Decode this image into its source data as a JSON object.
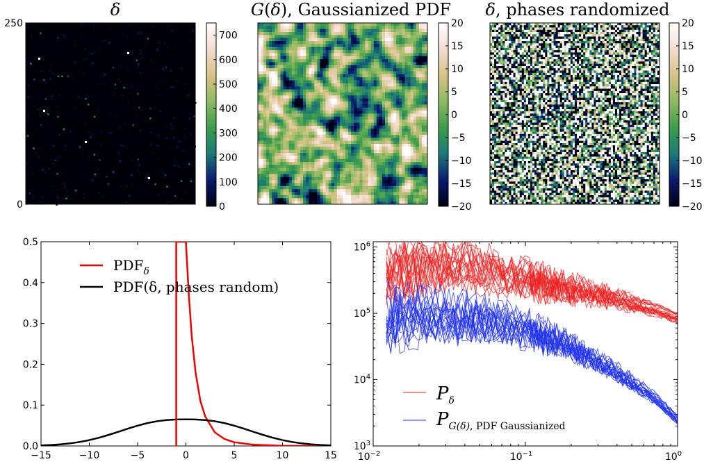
{
  "chart_data": [
    {
      "type": "heatmap",
      "title": "δ",
      "ytick_labels": [
        "250",
        "0"
      ],
      "colorbar": {
        "ticks": [
          0,
          100,
          200,
          300,
          400,
          500,
          600,
          700
        ],
        "range": [
          0,
          750
        ],
        "colors": [
          "#000010",
          "#0a1a70",
          "#1a7a78",
          "#3c9c4c",
          "#8eb962",
          "#d7c387",
          "#f2dcd2",
          "#ffffff"
        ]
      },
      "background": "#000000"
    },
    {
      "type": "heatmap",
      "title": "G(δ), Gaussianized PDF",
      "colorbar": {
        "ticks": [
          20,
          15,
          10,
          5,
          0,
          -5,
          -10,
          -15,
          -20
        ],
        "range": [
          -20,
          20
        ],
        "colors": [
          "#000010",
          "#0a1a70",
          "#1a7a78",
          "#3c9c4c",
          "#8eb962",
          "#d7c387",
          "#f2dcd2",
          "#ffffff"
        ]
      }
    },
    {
      "type": "heatmap",
      "title": "δ, phases randomized",
      "colorbar": {
        "ticks": [
          20,
          15,
          10,
          5,
          0,
          -5,
          -10,
          -15,
          -20
        ],
        "range": [
          -20,
          20
        ],
        "colors": [
          "#000010",
          "#0a1a70",
          "#1a7a78",
          "#3c9c4c",
          "#8eb962",
          "#d7c387",
          "#f2dcd2",
          "#ffffff"
        ]
      }
    },
    {
      "type": "line",
      "xlim": [
        -15,
        15
      ],
      "ylim": [
        0,
        0.5
      ],
      "xticks": [
        -15,
        -10,
        -5,
        0,
        5,
        10,
        15
      ],
      "yticks": [
        0.0,
        0.1,
        0.2,
        0.3,
        0.4,
        0.5
      ],
      "ytick_labels": [
        "0.0",
        "0.1",
        "0.2",
        "0.3",
        "0.4",
        "0.5"
      ],
      "legend_position": "top-right",
      "series": [
        {
          "name": "PDF",
          "name_subscript": "δ",
          "color": "#ee0000",
          "x": [
            -1.0,
            -0.98,
            -0.95,
            -0.9,
            -0.8,
            -0.6,
            -0.3,
            0,
            0.3,
            0.6,
            1.0,
            1.5,
            2,
            3,
            4,
            5,
            7,
            10,
            15
          ],
          "y": [
            0.5,
            0.5,
            0.5,
            0.5,
            0.5,
            0.5,
            0.5,
            0.5,
            0.37,
            0.27,
            0.18,
            0.11,
            0.072,
            0.033,
            0.017,
            0.009,
            0.003,
            0.0005,
            0.0
          ]
        },
        {
          "name": "PDF(δ, phases random)",
          "color": "#000000",
          "x": [
            -15,
            -14,
            -13,
            -12,
            -11,
            -10,
            -9,
            -8,
            -7,
            -6,
            -5,
            -4,
            -3,
            -2,
            -1,
            0,
            1,
            2,
            3,
            4,
            5,
            6,
            7,
            8,
            9,
            10,
            11,
            12,
            13,
            14,
            15
          ],
          "y": [
            0.0013,
            0.0023,
            0.0039,
            0.0063,
            0.0097,
            0.0143,
            0.0201,
            0.027,
            0.0346,
            0.0424,
            0.0497,
            0.0559,
            0.0605,
            0.0634,
            0.0648,
            0.065,
            0.0648,
            0.0634,
            0.0605,
            0.0559,
            0.0497,
            0.0424,
            0.0346,
            0.027,
            0.0201,
            0.0143,
            0.0097,
            0.0063,
            0.0039,
            0.0023,
            0.0013
          ]
        },
        {
          "name": "",
          "color": "#ee0000",
          "x": [
            -1.0,
            -1.0
          ],
          "y": [
            0.0,
            0.5
          ]
        }
      ]
    },
    {
      "type": "line",
      "xscale": "log",
      "yscale": "log",
      "xlim": [
        0.01,
        1.0
      ],
      "ylim": [
        1000,
        1200000
      ],
      "xtick_labels": [
        {
          "base": "10",
          "exp": "−2"
        },
        {
          "base": "10",
          "exp": "−1"
        },
        {
          "base": "10",
          "exp": "0"
        }
      ],
      "ytick_labels": [
        {
          "base": "10",
          "exp": "3"
        },
        {
          "base": "10",
          "exp": "4"
        },
        {
          "base": "10",
          "exp": "5"
        },
        {
          "base": "10",
          "exp": "6"
        }
      ],
      "legend_position": "bottom-left",
      "series": [
        {
          "name": "P",
          "name_subscript": "δ",
          "color": "#ee2222",
          "realizations": 20,
          "k": [
            0.012,
            0.02,
            0.035,
            0.06,
            0.1,
            0.2,
            0.4,
            0.7,
            1.0
          ],
          "P": [
            400000,
            500000,
            550000,
            450000,
            330000,
            230000,
            165000,
            115000,
            85000
          ]
        },
        {
          "name": "P",
          "name_subscript": "G(δ)",
          "name_suffix": ", PDF Gaussianized",
          "color": "#2233ee",
          "realizations": 20,
          "k": [
            0.012,
            0.02,
            0.035,
            0.06,
            0.1,
            0.2,
            0.4,
            0.7,
            1.0
          ],
          "P": [
            90000,
            95000,
            90000,
            80000,
            58000,
            32000,
            13000,
            5500,
            2500
          ]
        }
      ]
    }
  ]
}
